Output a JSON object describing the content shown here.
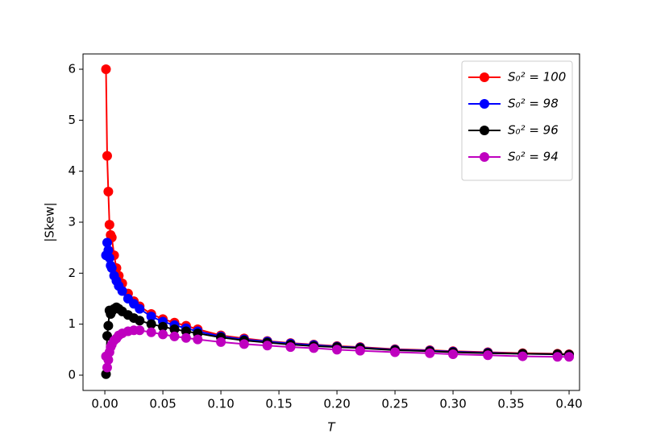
{
  "chart_data": {
    "type": "line",
    "x_label": "T",
    "y_label": "|Skew|",
    "x": [
      0.001,
      0.002,
      0.003,
      0.004,
      0.005,
      0.006,
      0.008,
      0.01,
      0.012,
      0.015,
      0.02,
      0.025,
      0.03,
      0.04,
      0.05,
      0.06,
      0.07,
      0.08,
      0.1,
      0.12,
      0.14,
      0.16,
      0.18,
      0.2,
      0.22,
      0.25,
      0.28,
      0.3,
      0.33,
      0.36,
      0.39,
      0.4
    ],
    "series": [
      {
        "name": "S₀² = 100",
        "color": "#ff0000",
        "values": [
          6.0,
          4.3,
          3.6,
          2.95,
          2.75,
          2.7,
          2.35,
          2.1,
          1.95,
          1.8,
          1.6,
          1.45,
          1.35,
          1.2,
          1.1,
          1.03,
          0.97,
          0.9,
          0.78,
          0.72,
          0.67,
          0.63,
          0.6,
          0.57,
          0.55,
          0.51,
          0.49,
          0.47,
          0.45,
          0.43,
          0.42,
          0.41
        ]
      },
      {
        "name": "S₀² = 98",
        "color": "#0000ff",
        "values": [
          2.35,
          2.6,
          2.45,
          2.3,
          2.15,
          2.1,
          1.95,
          1.85,
          1.75,
          1.65,
          1.5,
          1.4,
          1.3,
          1.15,
          1.05,
          0.98,
          0.92,
          0.86,
          0.76,
          0.7,
          0.66,
          0.62,
          0.59,
          0.56,
          0.54,
          0.5,
          0.48,
          0.46,
          0.44,
          0.42,
          0.41,
          0.4
        ]
      },
      {
        "name": "S₀² = 96",
        "color": "#000000",
        "values": [
          0.02,
          0.77,
          0.97,
          1.27,
          1.2,
          1.25,
          1.3,
          1.33,
          1.3,
          1.25,
          1.18,
          1.12,
          1.07,
          1.0,
          0.95,
          0.9,
          0.86,
          0.82,
          0.74,
          0.68,
          0.64,
          0.6,
          0.57,
          0.55,
          0.53,
          0.49,
          0.47,
          0.45,
          0.43,
          0.42,
          0.41,
          0.4
        ]
      },
      {
        "name": "S₀² = 94",
        "color": "#bf00bf",
        "values": [
          0.37,
          0.15,
          0.3,
          0.45,
          0.55,
          0.6,
          0.68,
          0.72,
          0.78,
          0.82,
          0.86,
          0.88,
          0.88,
          0.84,
          0.8,
          0.76,
          0.73,
          0.7,
          0.65,
          0.61,
          0.58,
          0.55,
          0.53,
          0.5,
          0.48,
          0.45,
          0.43,
          0.41,
          0.39,
          0.37,
          0.36,
          0.36
        ]
      }
    ],
    "xlim": [
      -0.0188,
      0.409
    ],
    "ylim": [
      -0.3,
      6.3
    ],
    "xticks": [
      {
        "value": 0,
        "label": "0.00"
      },
      0.05,
      {
        "value": 0.1,
        "label": "0.10"
      },
      0.15,
      {
        "value": 0.2,
        "label": "0.20"
      },
      0.25,
      {
        "value": 0.3,
        "label": "0.30"
      },
      0.35,
      {
        "value": 0.4,
        "label": "0.40"
      }
    ],
    "yticks": [
      0,
      1,
      2,
      3,
      4,
      5,
      6
    ],
    "grid": false,
    "legend": "upper right"
  }
}
